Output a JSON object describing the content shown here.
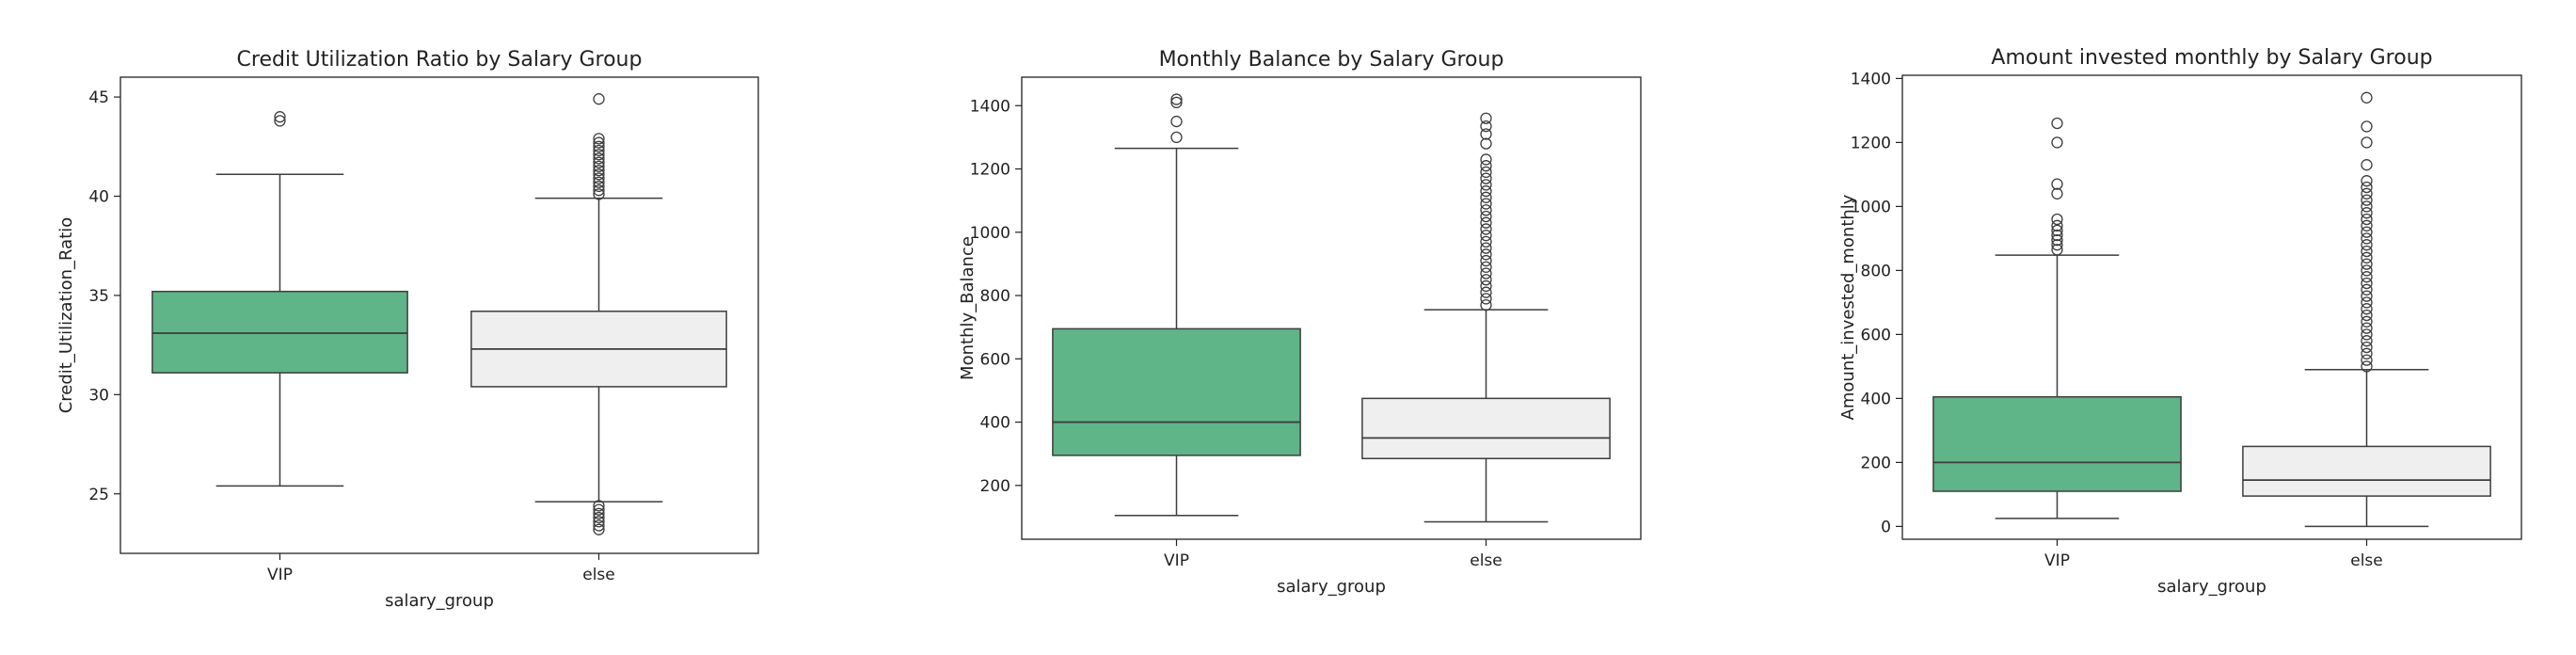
{
  "chart_data": [
    {
      "type": "box",
      "title": "Credit Utilization Ratio by Salary Group",
      "xlabel": "salary_group",
      "ylabel": "Credit_Utilization_Ratio",
      "ylim": [
        22,
        46
      ],
      "yticks": [
        25,
        30,
        35,
        40,
        45
      ],
      "categories": [
        "VIP",
        "else"
      ],
      "colors": [
        "#5fb587",
        "#efefef"
      ],
      "boxes": [
        {
          "whisker_low": 25.4,
          "q1": 31.1,
          "median": 33.1,
          "q3": 35.2,
          "whisker_high": 41.1,
          "outliers": [
            43.8,
            44.0
          ]
        },
        {
          "whisker_low": 24.6,
          "q1": 30.4,
          "median": 32.3,
          "q3": 34.2,
          "whisker_high": 39.9,
          "outliers": [
            23.2,
            23.4,
            23.6,
            23.8,
            24.0,
            24.2,
            24.4,
            40.1,
            40.3,
            40.5,
            40.7,
            40.9,
            41.1,
            41.3,
            41.5,
            41.7,
            41.9,
            42.1,
            42.3,
            42.5,
            42.7,
            42.9,
            44.9
          ]
        }
      ]
    },
    {
      "type": "box",
      "title": "Monthly Balance by Salary Group",
      "xlabel": "salary_group",
      "ylabel": "Monthly_Balance",
      "ylim": [
        30,
        1490
      ],
      "yticks": [
        200,
        400,
        600,
        800,
        1000,
        1200,
        1400
      ],
      "categories": [
        "VIP",
        "else"
      ],
      "colors": [
        "#5fb587",
        "#efefef"
      ],
      "boxes": [
        {
          "whisker_low": 105,
          "q1": 295,
          "median": 400,
          "q3": 695,
          "whisker_high": 1265,
          "outliers": [
            1300,
            1350,
            1410,
            1420
          ]
        },
        {
          "whisker_low": 85,
          "q1": 285,
          "median": 350,
          "q3": 475,
          "whisker_high": 755,
          "outliers": [
            770,
            790,
            810,
            830,
            850,
            870,
            890,
            910,
            930,
            950,
            970,
            990,
            1010,
            1030,
            1050,
            1070,
            1090,
            1110,
            1130,
            1150,
            1170,
            1190,
            1210,
            1230,
            1280,
            1310,
            1335,
            1360
          ]
        }
      ]
    },
    {
      "type": "box",
      "title": "Amount invested monthly by Salary Group",
      "xlabel": "salary_group",
      "ylabel": "Amount_invested_monthly",
      "ylim": [
        -40,
        1410
      ],
      "yticks": [
        0,
        200,
        400,
        600,
        800,
        1000,
        1200,
        1400
      ],
      "categories": [
        "VIP",
        "else"
      ],
      "colors": [
        "#5fb587",
        "#efefef"
      ],
      "boxes": [
        {
          "whisker_low": 25,
          "q1": 110,
          "median": 200,
          "q3": 405,
          "whisker_high": 848,
          "outliers": [
            865,
            880,
            895,
            910,
            925,
            940,
            960,
            1040,
            1070,
            1200,
            1260
          ]
        },
        {
          "whisker_low": 0,
          "q1": 95,
          "median": 145,
          "q3": 250,
          "whisker_high": 490,
          "outliers": [
            500,
            520,
            540,
            560,
            580,
            600,
            620,
            640,
            660,
            680,
            700,
            720,
            740,
            760,
            780,
            800,
            820,
            840,
            860,
            880,
            900,
            920,
            940,
            960,
            980,
            1000,
            1020,
            1040,
            1060,
            1080,
            1130,
            1200,
            1250,
            1340
          ]
        }
      ]
    }
  ]
}
